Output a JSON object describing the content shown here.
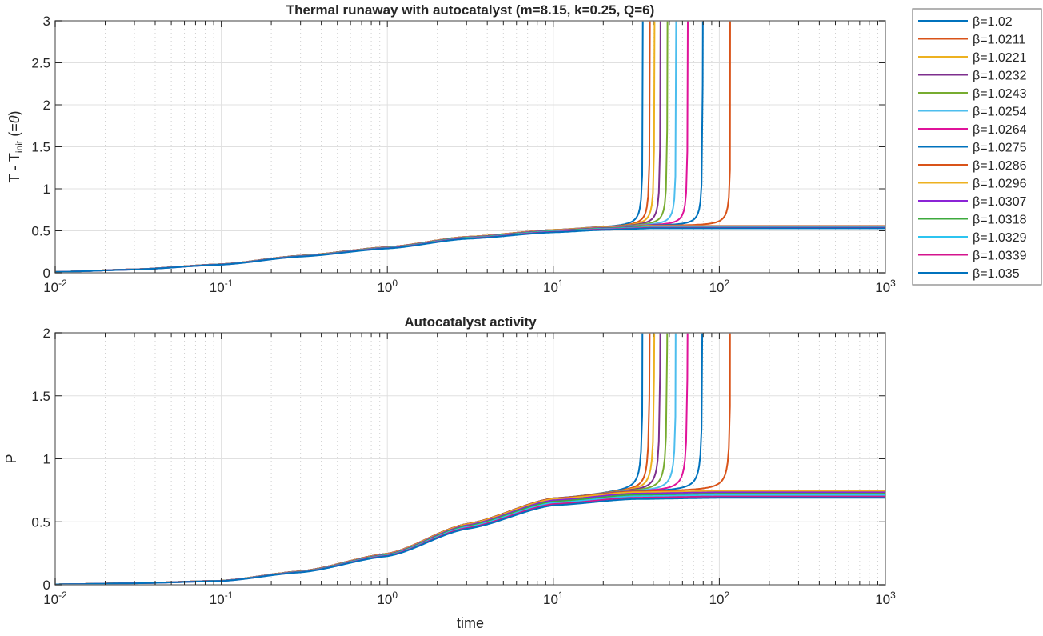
{
  "chart_data": [
    {
      "type": "line",
      "title": "Thermal runaway with autocatalyst (m=8.15, k=0.25, Q=6)",
      "xlabel": "",
      "ylabel_parts": [
        "T - T",
        "init",
        " (=",
        "θ",
        ")"
      ],
      "xscale": "log",
      "xlim": [
        0.01,
        1000
      ],
      "ylim": [
        0,
        3
      ],
      "yticks": [
        "0",
        "0.5",
        "1",
        "1.5",
        "2",
        "2.5",
        "3"
      ],
      "ytick_values": [
        0,
        0.5,
        1,
        1.5,
        2,
        2.5,
        3
      ],
      "grid": true,
      "base_curve": {
        "t": [
          0.01,
          0.03,
          0.1,
          0.3,
          1,
          3,
          10,
          20,
          40,
          100
        ],
        "y": [
          0.01,
          0.04,
          0.1,
          0.2,
          0.3,
          0.42,
          0.5,
          0.53,
          0.55,
          0.55
        ]
      },
      "runaway_plateau": 0.56,
      "plateau_range": [
        0.56,
        0.53
      ]
    },
    {
      "type": "line",
      "title": "Autocatalyst activity",
      "xlabel": "time",
      "ylabel_parts": [
        "P"
      ],
      "xscale": "log",
      "xlim": [
        0.01,
        1000
      ],
      "ylim": [
        0,
        2
      ],
      "yticks": [
        "0",
        "0.5",
        "1",
        "1.5",
        "2"
      ],
      "ytick_values": [
        0,
        0.5,
        1,
        1.5,
        2
      ],
      "grid": true,
      "base_curve": {
        "t": [
          0.01,
          0.03,
          0.1,
          0.3,
          1,
          3,
          10,
          30,
          100
        ],
        "y": [
          0.003,
          0.012,
          0.03,
          0.1,
          0.23,
          0.45,
          0.64,
          0.69,
          0.7
        ]
      },
      "runaway_plateau": 0.75,
      "plateau_range": [
        0.745,
        0.69
      ]
    }
  ],
  "xticks": {
    "base": "10",
    "exponents": [
      "-2",
      "-1",
      "0",
      "1",
      "2",
      "3"
    ]
  },
  "legend": {
    "placement": "outside-right"
  },
  "series": [
    {
      "name": "β=1.02",
      "beta": 1.02,
      "color": "#0072BD",
      "runaway_time": 35
    },
    {
      "name": "β=1.0211",
      "beta": 1.0211,
      "color": "#D95319",
      "runaway_time": 38.5
    },
    {
      "name": "β=1.0221",
      "beta": 1.0221,
      "color": "#EDB120",
      "runaway_time": 41
    },
    {
      "name": "β=1.0232",
      "beta": 1.0232,
      "color": "#7E2F8E",
      "runaway_time": 44.5
    },
    {
      "name": "β=1.0243",
      "beta": 1.0243,
      "color": "#77AC30",
      "runaway_time": 49
    },
    {
      "name": "β=1.0254",
      "beta": 1.0254,
      "color": "#4DBEEE",
      "runaway_time": 55.5
    },
    {
      "name": "β=1.0264",
      "beta": 1.0264,
      "color": "#E0139A",
      "runaway_time": 65
    },
    {
      "name": "β=1.0275",
      "beta": 1.0275,
      "color": "#0072BD",
      "runaway_time": 80
    },
    {
      "name": "β=1.0286",
      "beta": 1.0286,
      "color": "#D95319",
      "runaway_time": 118
    },
    {
      "name": "β=1.0296",
      "beta": 1.0296,
      "color": "#EDB120",
      "runaway_time": null
    },
    {
      "name": "β=1.0307",
      "beta": 1.0307,
      "color": "#8B24D6",
      "runaway_time": null
    },
    {
      "name": "β=1.0318",
      "beta": 1.0318,
      "color": "#3DAA3D",
      "runaway_time": null
    },
    {
      "name": "β=1.0329",
      "beta": 1.0329,
      "color": "#2CC4F0",
      "runaway_time": null
    },
    {
      "name": "β=1.0339",
      "beta": 1.0339,
      "color": "#D4148E",
      "runaway_time": null
    },
    {
      "name": "β=1.035",
      "beta": 1.035,
      "color": "#0072BD",
      "runaway_time": null
    }
  ]
}
